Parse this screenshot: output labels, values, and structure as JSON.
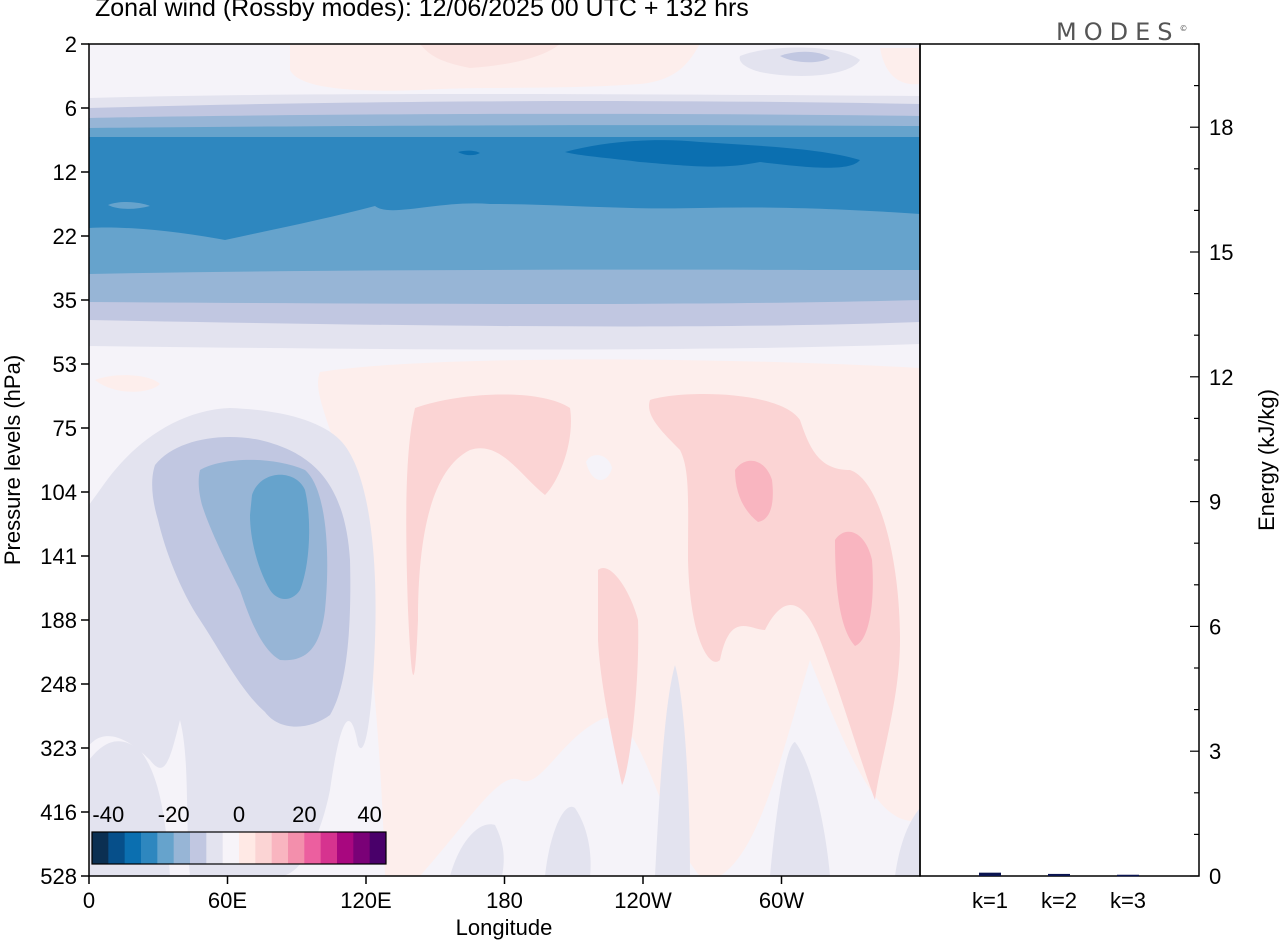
{
  "header": {
    "title": "Zonal wind (Rossby modes):  12/06/2025  00 UTC  + 132 hrs",
    "brand": "MODES",
    "brand_mark": "©"
  },
  "chart_data": [
    {
      "type": "heatmap",
      "title": "Zonal wind (Rossby modes):  12/06/2025  00 UTC  + 132 hrs",
      "xlabel": "Longitude",
      "ylabel": "Pressure levels (hPa)",
      "x_ticks": [
        "0",
        "60E",
        "120E",
        "180",
        "120W",
        "60W"
      ],
      "y_ticks": [
        "2",
        "6",
        "12",
        "22",
        "35",
        "53",
        "75",
        "104",
        "141",
        "188",
        "248",
        "323",
        "416",
        "528"
      ],
      "colorbar": {
        "tick_labels": [
          "-40",
          "-20",
          "0",
          "20",
          "40"
        ],
        "range": [
          -45,
          45
        ],
        "step": 5,
        "colors": [
          "#0b2f52",
          "#064f8a",
          "#0b6fb0",
          "#2e87bf",
          "#66a3cc",
          "#97b5d6",
          "#c1c7e1",
          "#e3e3ef",
          "#f7f4f9",
          "#ffe9e5",
          "#fbd4d4",
          "#f9b5c0",
          "#f38fac",
          "#ec5f9f",
          "#d6338f",
          "#a8077f",
          "#7a0177",
          "#49006a"
        ]
      },
      "grid": false,
      "legend_placement": "bottom-left"
    },
    {
      "type": "bar",
      "ylabel": "Energy (kJ/kg)",
      "categories": [
        "k=1",
        "k=2",
        "k=3"
      ],
      "values": [
        0.08,
        0.05,
        0.03
      ],
      "ylim": [
        0,
        20
      ],
      "y_ticks": [
        "0",
        "3",
        "6",
        "9",
        "12",
        "15",
        "18"
      ],
      "bar_color": "#0a1450",
      "grid": false
    }
  ]
}
